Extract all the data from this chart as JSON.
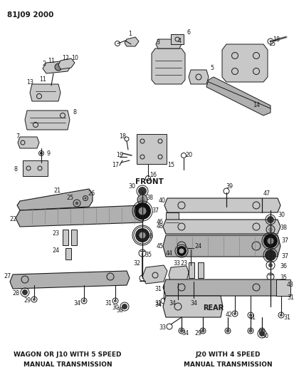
{
  "title": "81J09 2000",
  "bg_color": "#ffffff",
  "fig_width": 4.13,
  "fig_height": 5.33,
  "dpi": 100,
  "front_label": "FRONT",
  "rear_label": "REAR",
  "bottom_left_line1": "WAGON OR J10 WITH 5 SPEED",
  "bottom_left_line2": "MANUAL TRANSMISSION",
  "bottom_right_line1": "J20 WITH 4 SPEED",
  "bottom_right_line2": "MANUAL TRANSMISSION"
}
